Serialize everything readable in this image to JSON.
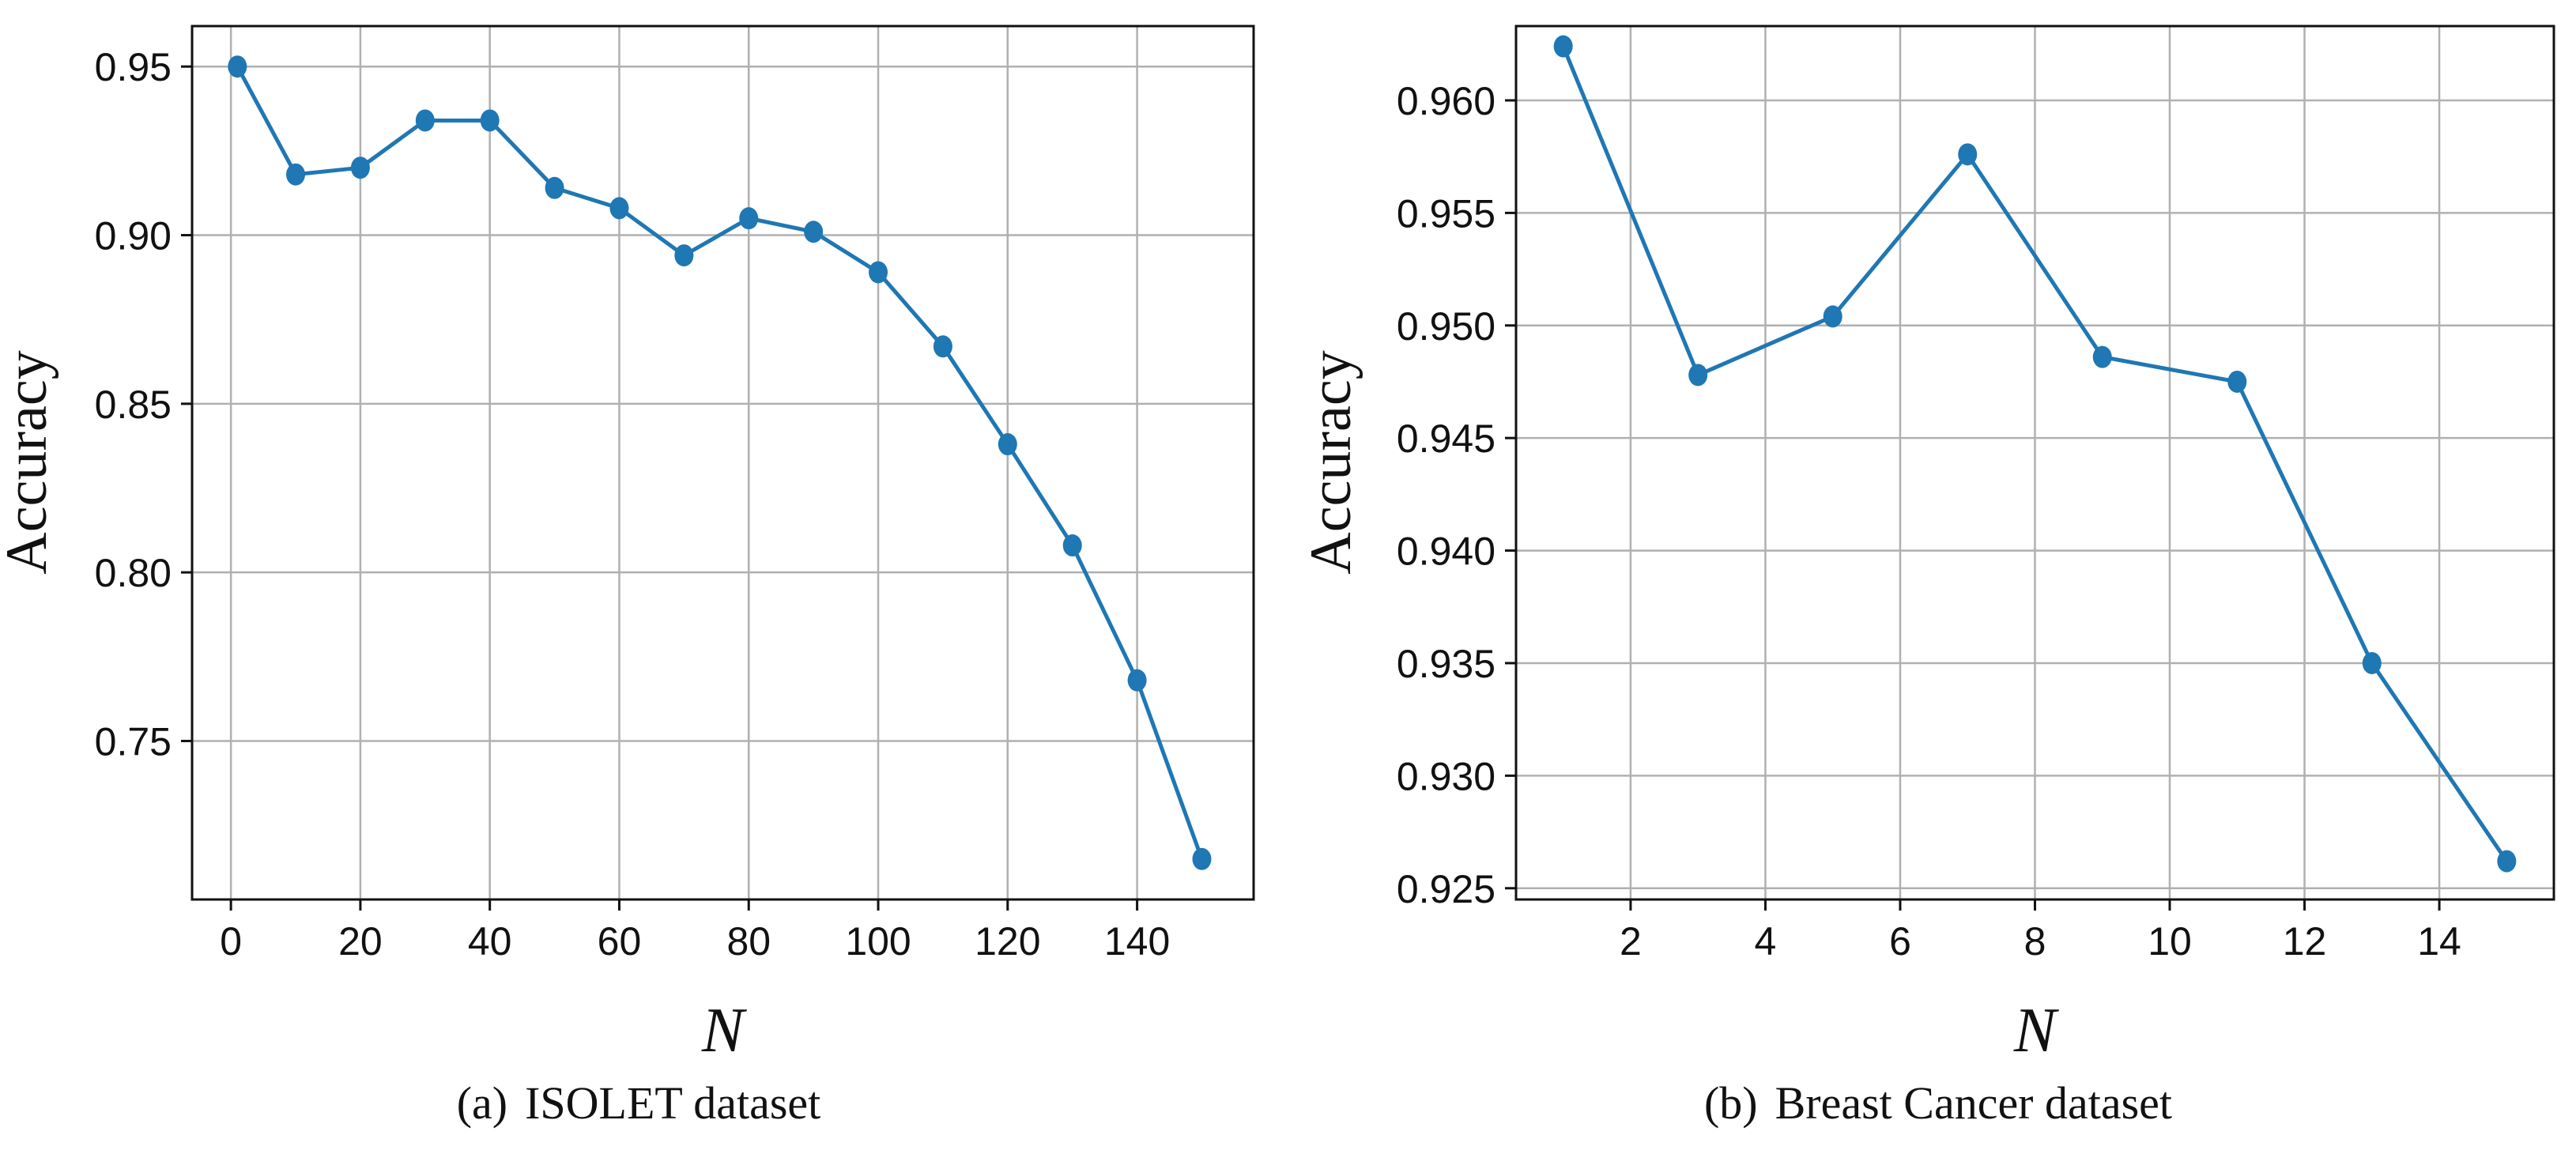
{
  "chart_data": [
    {
      "type": "line",
      "caption_tag": "(a)",
      "caption_text": "ISOLET dataset",
      "xlabel": "N",
      "ylabel": "Accuracy",
      "xlim": [
        -6,
        158
      ],
      "ylim": [
        0.703,
        0.962
      ],
      "xticks": [
        0,
        20,
        40,
        60,
        80,
        100,
        120,
        140
      ],
      "yticks": [
        0.75,
        0.8,
        0.85,
        0.9,
        0.95
      ],
      "ytick_decimals": 2,
      "grid": true,
      "color": "#1f77b4",
      "series": [
        {
          "name": "Accuracy",
          "x": [
            1,
            10,
            20,
            30,
            40,
            50,
            60,
            70,
            80,
            90,
            100,
            110,
            120,
            130,
            140,
            150
          ],
          "y": [
            0.95,
            0.918,
            0.92,
            0.934,
            0.934,
            0.914,
            0.908,
            0.894,
            0.905,
            0.901,
            0.889,
            0.867,
            0.838,
            0.808,
            0.768,
            0.715
          ]
        }
      ]
    },
    {
      "type": "line",
      "caption_tag": "(b)",
      "caption_text": "Breast Cancer dataset",
      "xlabel": "N",
      "ylabel": "Accuracy",
      "xlim": [
        0.3,
        15.7
      ],
      "ylim": [
        0.9245,
        0.9633
      ],
      "xticks": [
        2,
        4,
        6,
        8,
        10,
        12,
        14
      ],
      "yticks": [
        0.925,
        0.93,
        0.935,
        0.94,
        0.945,
        0.95,
        0.955,
        0.96
      ],
      "ytick_decimals": 3,
      "grid": true,
      "color": "#1f77b4",
      "series": [
        {
          "name": "Accuracy",
          "x": [
            1,
            3,
            5,
            7,
            9,
            11,
            13,
            15
          ],
          "y": [
            0.9624,
            0.9478,
            0.9504,
            0.9576,
            0.9486,
            0.9475,
            0.935,
            0.9262
          ]
        }
      ]
    }
  ]
}
